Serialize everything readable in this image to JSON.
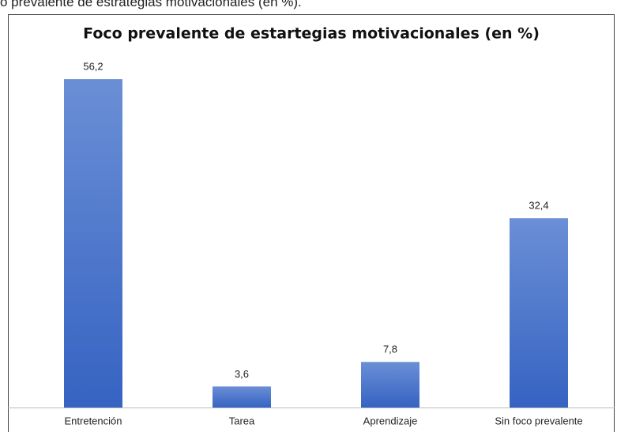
{
  "caption": "o prevalente de estrategias motivacionales (en %).",
  "chart_data": {
    "type": "bar",
    "title": "Foco prevalente de estartegias motivacionales (en %)",
    "categories": [
      "Entretención",
      "Tarea",
      "Aprendizaje",
      "Sin foco prevalente"
    ],
    "values": [
      56.2,
      3.6,
      7.8,
      32.4
    ],
    "value_labels": [
      "56,2",
      "3,6",
      "7,8",
      "32,4"
    ],
    "color": "#4472c4",
    "ylim": [
      0,
      60
    ]
  }
}
